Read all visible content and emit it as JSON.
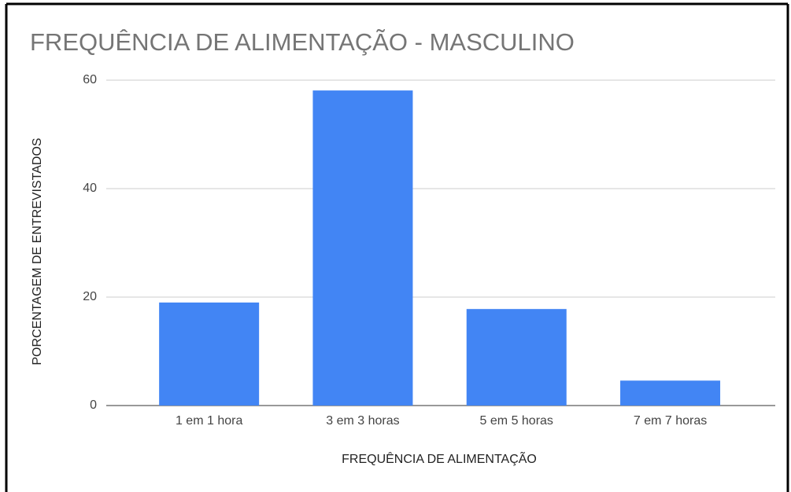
{
  "chart_data": {
    "type": "bar",
    "title": "FREQUÊNCIA DE ALIMENTAÇÃO - MASCULINO",
    "x_label": "FREQUÊNCIA DE ALIMENTAÇÃO",
    "y_label": "PORCENTAGEM DE ENTREVISTADOS",
    "categories": [
      "1 em 1 hora",
      "3 em 3 horas",
      "5 em 5 horas",
      "7 em 7 horas"
    ],
    "values": [
      19,
      58.1,
      17.8,
      4.6
    ],
    "color": "#4285f4",
    "ylim": [
      0,
      60
    ],
    "yticks": [
      0,
      20,
      40,
      60
    ],
    "grid": true
  }
}
